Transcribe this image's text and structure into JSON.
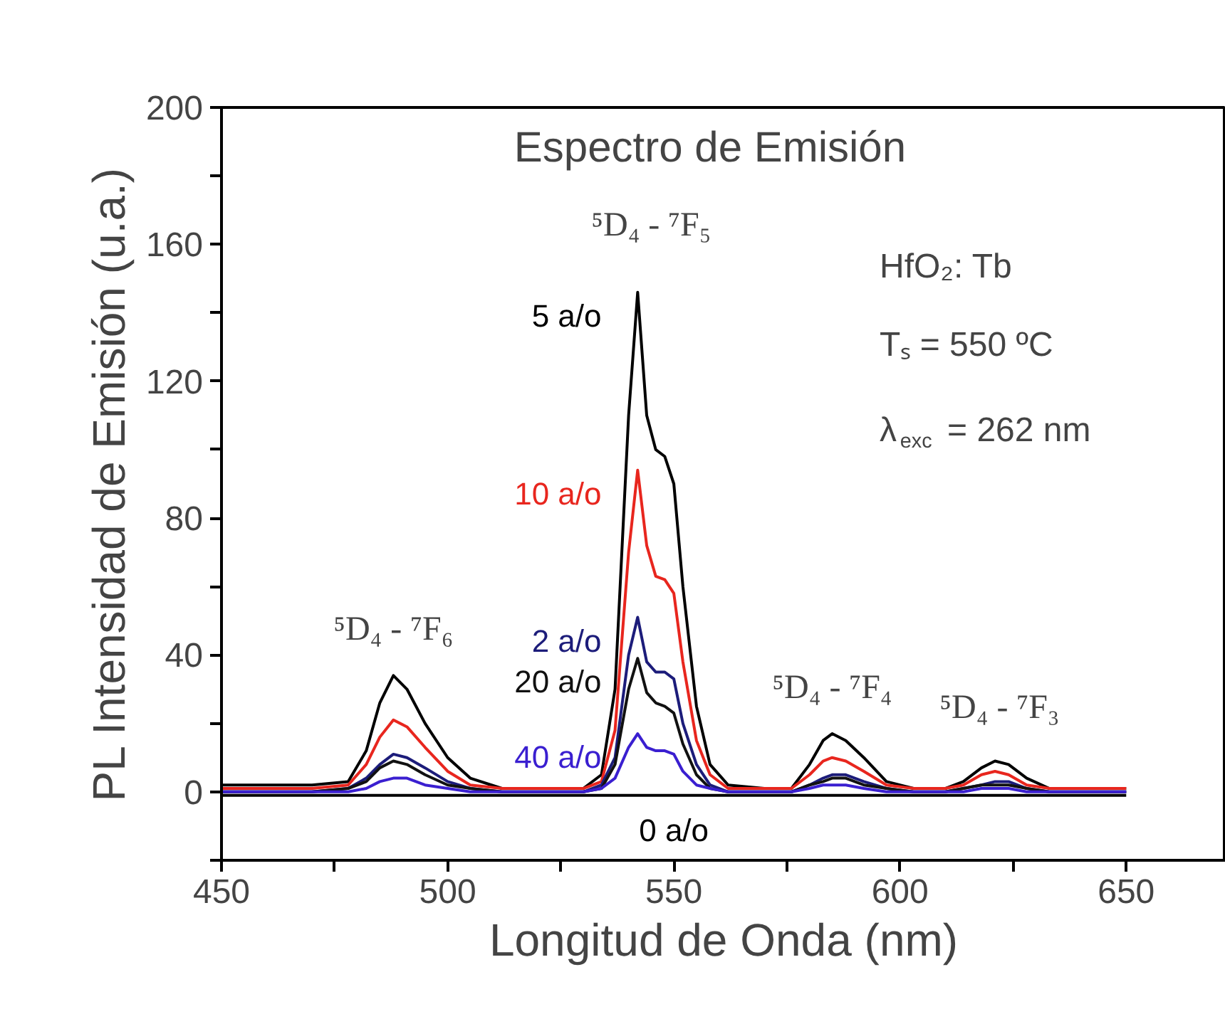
{
  "chart_data": {
    "type": "line",
    "title": "Espectro de Emisión",
    "xlabel": "Longitud de Onda (nm)",
    "ylabel": "PL Intensidad de Emisión (u.a.)",
    "xlim": [
      450,
      672
    ],
    "ylim": [
      -20,
      200
    ],
    "xticks": [
      450,
      {
        "value": 475,
        "label": null
      },
      500,
      {
        "value": 525,
        "label": null
      },
      550,
      {
        "value": 575,
        "label": null
      },
      600,
      {
        "value": 625,
        "label": null
      },
      650
    ],
    "yticks": [
      {
        "value": -20,
        "label": null
      },
      0,
      {
        "value": 20,
        "label": null
      },
      40,
      {
        "value": 60,
        "label": null
      },
      80,
      {
        "value": 100,
        "label": null
      },
      120,
      {
        "value": 140,
        "label": null
      },
      160,
      {
        "value": 180,
        "label": null
      },
      200
    ],
    "grid": false,
    "x": [
      450,
      470,
      478,
      482,
      485,
      488,
      491,
      495,
      500,
      505,
      512,
      520,
      530,
      534,
      537,
      540,
      542,
      544,
      546,
      548,
      550,
      552,
      555,
      558,
      562,
      570,
      576,
      580,
      583,
      585,
      588,
      592,
      597,
      603,
      610,
      614,
      618,
      621,
      624,
      628,
      633,
      640,
      650
    ],
    "series": [
      {
        "name": "5 a/o",
        "color": "#000000",
        "values": [
          2,
          2,
          3,
          12,
          26,
          34,
          30,
          20,
          10,
          4,
          1,
          1,
          1,
          5,
          30,
          110,
          146,
          110,
          100,
          98,
          90,
          60,
          25,
          8,
          2,
          1,
          1,
          8,
          15,
          17,
          15,
          10,
          3,
          1,
          1,
          3,
          7,
          9,
          8,
          4,
          1,
          1,
          1
        ]
      },
      {
        "name": "10 a/o",
        "color": "#e8261e",
        "values": [
          1,
          1,
          2,
          8,
          16,
          21,
          19,
          13,
          6,
          2,
          1,
          1,
          1,
          3,
          18,
          70,
          94,
          72,
          63,
          62,
          58,
          38,
          15,
          5,
          1,
          1,
          1,
          5,
          9,
          10,
          9,
          6,
          2,
          1,
          1,
          2,
          5,
          6,
          5,
          2,
          1,
          1,
          1
        ]
      },
      {
        "name": "2 a/o",
        "color": "#1c1c7a",
        "values": [
          0,
          0,
          1,
          4,
          8,
          11,
          10,
          7,
          3,
          1,
          0,
          0,
          0,
          2,
          10,
          40,
          51,
          38,
          35,
          35,
          33,
          20,
          8,
          2,
          0,
          0,
          0,
          2,
          4,
          5,
          5,
          3,
          1,
          0,
          0,
          1,
          2,
          3,
          3,
          1,
          0,
          0,
          0
        ]
      },
      {
        "name": "20 a/o",
        "color": "#111111",
        "values": [
          0,
          0,
          1,
          3,
          7,
          9,
          8,
          5,
          2,
          1,
          0,
          0,
          0,
          1,
          8,
          30,
          39,
          29,
          26,
          25,
          23,
          14,
          5,
          1,
          0,
          0,
          0,
          2,
          3,
          4,
          4,
          2,
          1,
          0,
          0,
          1,
          2,
          2,
          2,
          1,
          0,
          0,
          0
        ]
      },
      {
        "name": "40 a/o",
        "color": "#3a1fd0",
        "values": [
          0,
          0,
          0,
          1,
          3,
          4,
          4,
          2,
          1,
          0,
          0,
          0,
          0,
          1,
          4,
          13,
          17,
          13,
          12,
          12,
          11,
          6,
          2,
          1,
          0,
          0,
          0,
          1,
          2,
          2,
          2,
          1,
          0,
          0,
          0,
          0,
          1,
          1,
          1,
          0,
          0,
          0,
          0
        ]
      },
      {
        "name": "0 a/o",
        "color": "#000000",
        "values": [
          -1,
          -1,
          -1,
          -1,
          -1,
          -1,
          -1,
          -1,
          -1,
          -1,
          -1,
          -1,
          -1,
          -1,
          -1,
          -1,
          -1,
          -1,
          -1,
          -1,
          -1,
          -1,
          -1,
          -1,
          -1,
          -1,
          -1,
          -1,
          -1,
          -1,
          -1,
          -1,
          -1,
          -1,
          -1,
          -1,
          -1,
          -1,
          -1,
          -1,
          -1,
          -1,
          -1
        ]
      }
    ],
    "annotations": [
      "⁵D₄ - ⁷F₅",
      "⁵D₄ - ⁷F₆",
      "⁵D₄ - ⁷F₄",
      "⁵D₄ - ⁷F₃",
      "HfO₂: Tb",
      "Tₛ = 550 ºC",
      "λ$_{exc}$ = 262 nm"
    ]
  }
}
